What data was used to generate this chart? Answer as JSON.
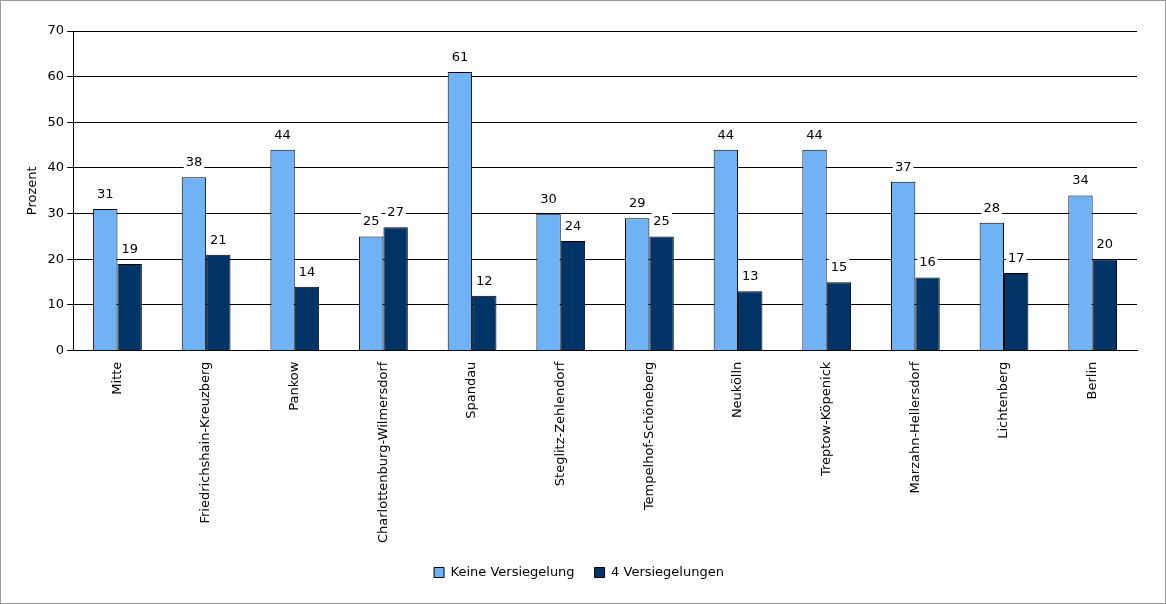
{
  "chart_data": {
    "type": "bar",
    "ylabel": "Prozent",
    "categories": [
      "Mitte",
      "Friedrichshain-Kreuzberg",
      "Pankow",
      "Charlottenburg-Wilmersdorf",
      "Spandau",
      "Steglitz-Zehlendorf",
      "Tempelhof-Schöneberg",
      "Neukölln",
      "Treptow-Köpenick",
      "Marzahn-Hellersdorf",
      "Lichtenberg",
      "Berlin"
    ],
    "series": [
      {
        "name": "Keine Versiegelung",
        "color": "#6fb2f5",
        "values": [
          31,
          38,
          44,
          25,
          61,
          30,
          29,
          44,
          44,
          37,
          28,
          34
        ]
      },
      {
        "name": "4 Versiegelungen",
        "color": "#003366",
        "values": [
          19,
          21,
          14,
          27,
          12,
          24,
          25,
          13,
          15,
          16,
          17,
          20
        ]
      }
    ],
    "ylim": [
      0,
      70
    ],
    "yticks": [
      0,
      10,
      20,
      30,
      40,
      50,
      60,
      70
    ],
    "grid": "y",
    "legend": "bottom",
    "data_labels": true
  }
}
